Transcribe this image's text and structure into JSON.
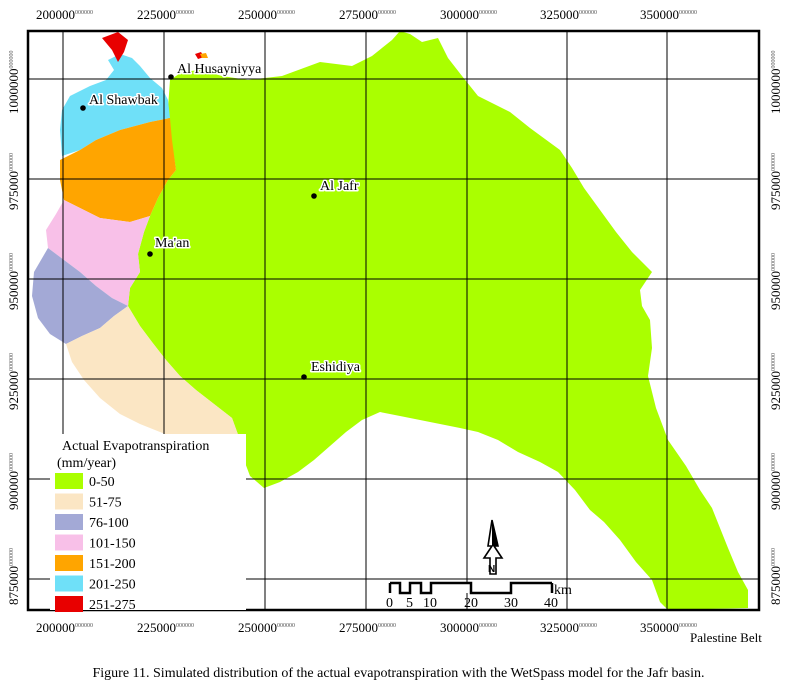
{
  "legend": {
    "title_line1": "Actual Evapotranspiration",
    "title_line2": "(mm/year)",
    "classes": [
      {
        "label": "0-50",
        "color": "#aaff00"
      },
      {
        "label": "51-75",
        "color": "#fbe6c4"
      },
      {
        "label": "76-100",
        "color": "#a3a9d6"
      },
      {
        "label": "101-150",
        "color": "#f8c0e8"
      },
      {
        "label": "151-200",
        "color": "#ffa500"
      },
      {
        "label": "201-250",
        "color": "#6fe0f8"
      },
      {
        "label": "251-275",
        "color": "#e80000"
      }
    ]
  },
  "x_ticks": [
    "200000",
    "225000",
    "250000",
    "275000",
    "300000",
    "325000",
    "350000"
  ],
  "y_ticks": [
    "1000000",
    "975000",
    "950000",
    "925000",
    "900000",
    "875000"
  ],
  "tick_suffix": "000000",
  "places": {
    "al_husayniyya": "Al Husayniyya",
    "al_shawbak": "Al Shawbak",
    "al_jafr": "Al Jafr",
    "maan": "Ma'an",
    "eshidiya": "Eshidiya"
  },
  "scale_bar": {
    "unit": "km",
    "labels": [
      "0",
      "5",
      "10",
      "20",
      "30",
      "40"
    ]
  },
  "corner_label": "Palestine Belt",
  "caption": "Figure 11. Simulated distribution of the actual evapotranspiration with the WetSpass model for the Jafr basin.",
  "north_arrow_label": "N"
}
